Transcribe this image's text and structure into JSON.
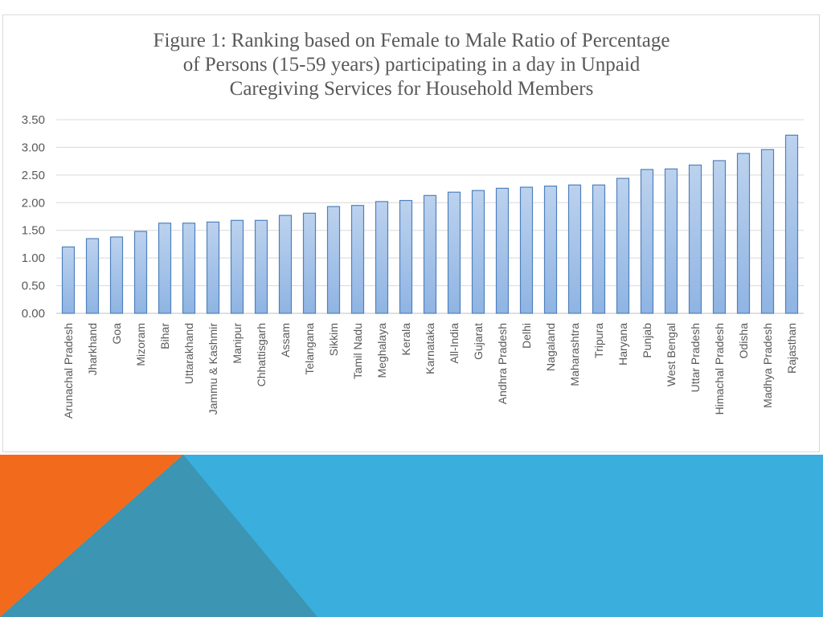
{
  "chart_data": {
    "type": "bar",
    "title_lines": [
      "Figure 1: Ranking  based on Female to Male Ratio of Percentage",
      "of Persons (15-59  years)  participating  in a day in Unpaid",
      "Caregiving  Services  for Household Members"
    ],
    "xlabel": "",
    "ylabel": "",
    "ylim": [
      0,
      3.5
    ],
    "yticks": [
      "0.00",
      "0.50",
      "1.00",
      "1.50",
      "2.00",
      "2.50",
      "3.00",
      "3.50"
    ],
    "ytick_values": [
      0,
      0.5,
      1.0,
      1.5,
      2.0,
      2.5,
      3.0,
      3.5
    ],
    "grid": true,
    "legend": "none",
    "categories": [
      "Arunachal Pradesh",
      "Jharkhand",
      "Goa",
      "Mizoram",
      "Bihar",
      "Uttarakhand",
      "Jammu & Kashmir",
      "Manipur",
      "Chhattisgarh",
      "Assam",
      "Telangana",
      "Sikkim",
      "Tamil Nadu",
      "Meghalaya",
      "Kerala",
      "Karnataka",
      "All-India",
      "Gujarat",
      "Andhra Pradesh",
      "Delhi",
      "Nagaland",
      "Maharashtra",
      "Tripura",
      "Haryana",
      "Punjab",
      "West Bengal",
      "Uttar Pradesh",
      "Himachal Pradesh",
      "Odisha",
      "Madhya Pradesh",
      "Rajasthan"
    ],
    "values": [
      1.2,
      1.35,
      1.38,
      1.48,
      1.63,
      1.63,
      1.65,
      1.68,
      1.68,
      1.77,
      1.81,
      1.93,
      1.95,
      2.02,
      2.04,
      2.13,
      2.19,
      2.22,
      2.26,
      2.28,
      2.3,
      2.32,
      2.32,
      2.44,
      2.6,
      2.61,
      2.68,
      2.76,
      2.89,
      2.96,
      3.22
    ],
    "colors": {
      "bar_fill_top": "#bcd2ee",
      "bar_fill_bottom": "#8fb4e3",
      "bar_stroke": "#4f81bd",
      "grid": "#d9d9d9",
      "axis_text": "#595959"
    }
  },
  "decoration": {
    "colors": {
      "orange": "#f26b1d",
      "blue": "#3aaedc",
      "teal": "#3b95b3"
    }
  }
}
